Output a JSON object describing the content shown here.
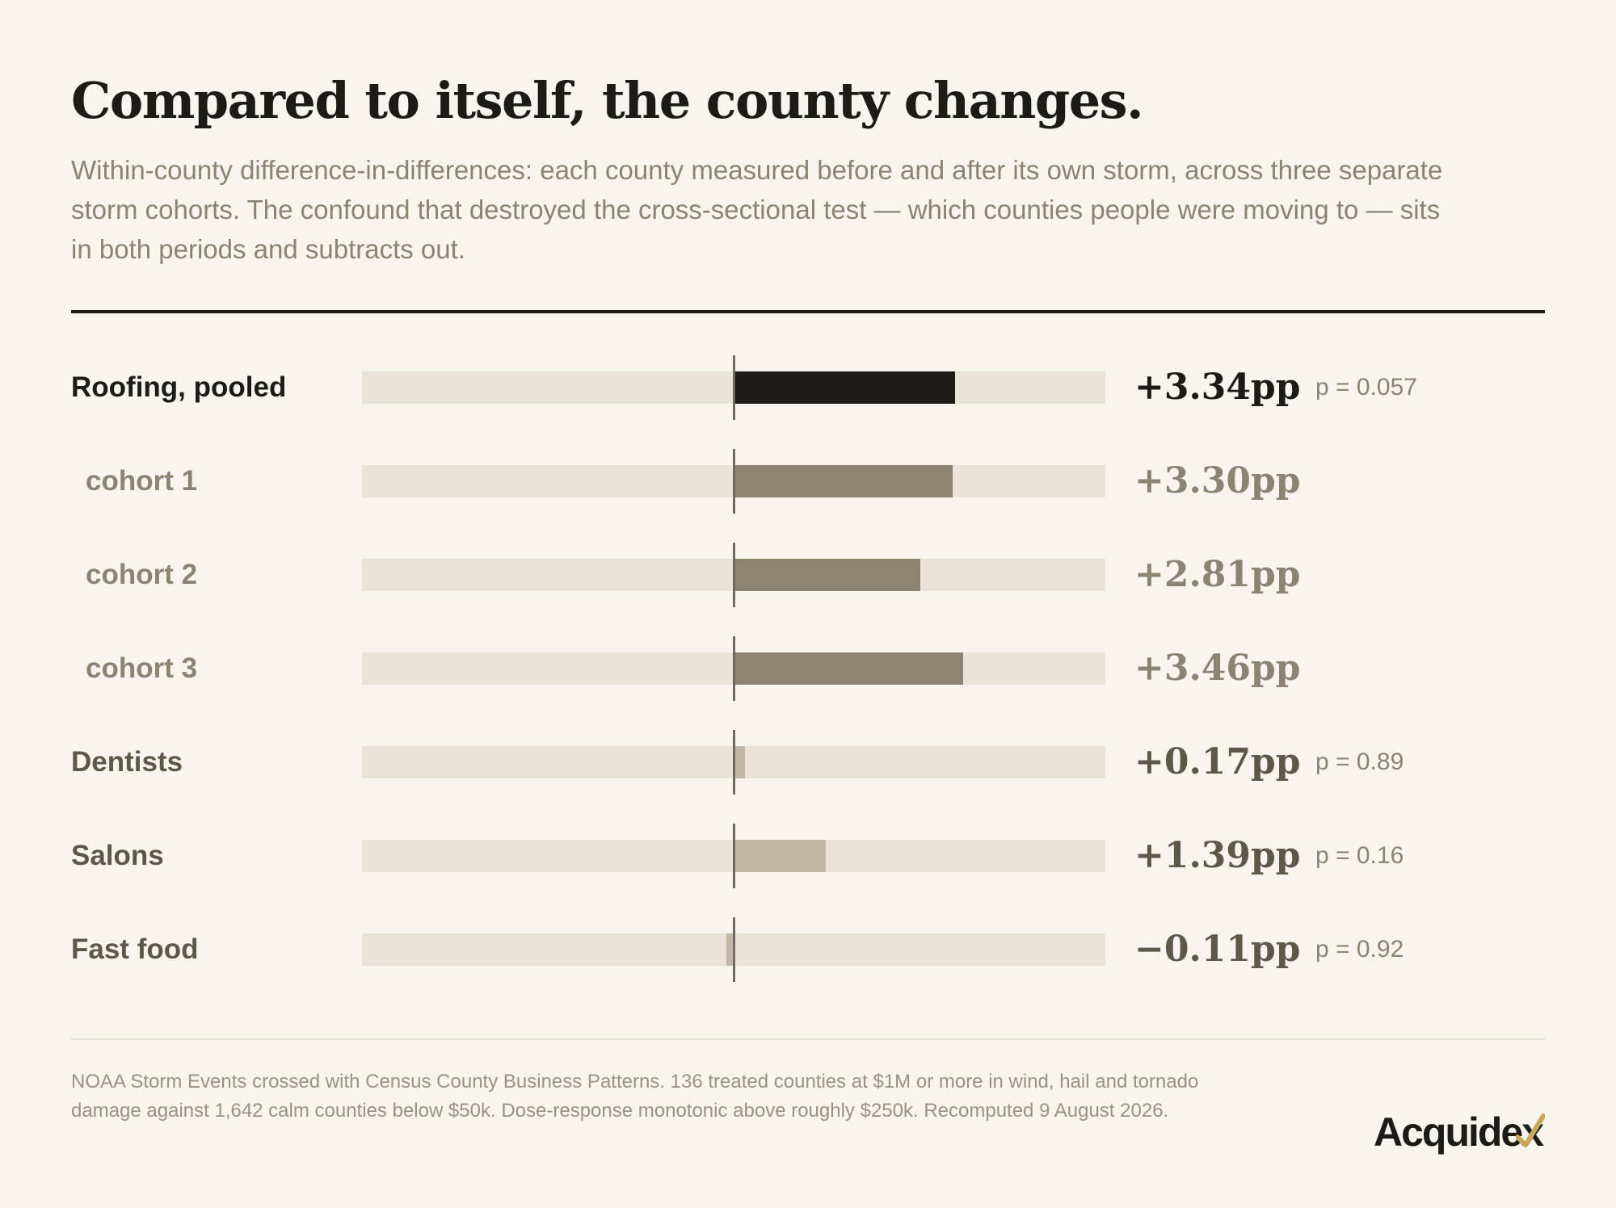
{
  "title": "Compared to itself, the county changes.",
  "subtitle": "Within-county difference-in-differences: each county measured before and after its own storm, across three separate storm cohorts. The confound that destroyed the cross-sectional test — which counties people were moving to — sits in both periods and subtracts out.",
  "footer": "NOAA Storm Events crossed with Census County Business Patterns. 136 treated counties at $1M or more in wind, hail and tornado damage against 1,642 calm counties below $50k. Dose-response monotonic above roughly $250k. Recomputed 9 August 2026.",
  "brand": "Acquidex",
  "colors": {
    "background": "#f8f5ee",
    "track": "#eae4d6",
    "pooled": "#1c1b17",
    "cohort": "#8c8471",
    "other": "#c0b7a4",
    "label_strong": "#1c1b17",
    "label_muted": "#8c8472",
    "label_other": "#5e5848",
    "brand_accent": "#c9a75a"
  },
  "chart_data": {
    "type": "bar",
    "orientation": "horizontal",
    "unit": "pp",
    "xlim": [
      -5.6,
      5.6
    ],
    "zero_line": true,
    "categories": [
      "Roofing, pooled",
      "cohort 1",
      "cohort 2",
      "cohort 3",
      "Dentists",
      "Salons",
      "Fast food"
    ],
    "values": [
      3.34,
      3.3,
      2.81,
      3.46,
      0.17,
      1.39,
      -0.11
    ],
    "value_labels": [
      "+3.34pp",
      "+3.30pp",
      "+2.81pp",
      "+3.46pp",
      "+0.17pp",
      "+1.39pp",
      "−0.11pp"
    ],
    "p_values": [
      "p = 0.057",
      "",
      "",
      "",
      "p = 0.89",
      "p = 0.16",
      "p = 0.92"
    ],
    "kinds": [
      "pooled",
      "cohort",
      "cohort",
      "cohort",
      "other",
      "other",
      "other"
    ]
  }
}
